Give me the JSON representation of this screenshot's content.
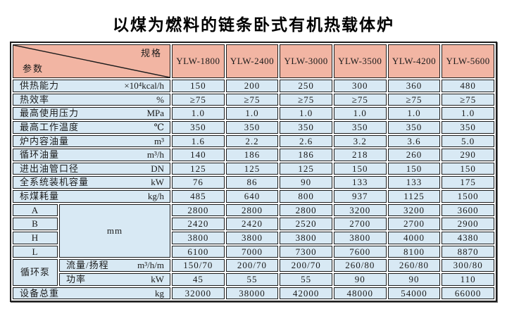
{
  "title": "以煤为燃料的链条卧式有机热载体炉",
  "colors": {
    "header_bg": "#f2b5a3",
    "row_bg": "#d8e9f4",
    "border": "#1c1c1c",
    "page_bg": "#ffffff",
    "text": "#1a1a1a"
  },
  "table": {
    "corner": {
      "spec_label": "规格",
      "param_label": "参数"
    },
    "models": [
      "YLW-1800",
      "YLW-2400",
      "YLW-3000",
      "YLW-3500",
      "YLW-4200",
      "YLW-5600"
    ],
    "rows": [
      {
        "label": "供热能力",
        "unit": "×10⁴kcal/h",
        "colspan": 2,
        "values": [
          "150",
          "200",
          "250",
          "300",
          "360",
          "480"
        ]
      },
      {
        "label": "热效率",
        "unit": "%",
        "colspan": 2,
        "values": [
          "≥75",
          "≥75",
          "≥75",
          "≥75",
          "≥75",
          "≥75"
        ]
      },
      {
        "label": "最高使用压力",
        "unit": "MPa",
        "colspan": 2,
        "values": [
          "1.0",
          "1.0",
          "1.0",
          "1.0",
          "1.0",
          "1.0"
        ]
      },
      {
        "label": "最高工作温度",
        "unit": "℃",
        "colspan": 2,
        "values": [
          "350",
          "350",
          "350",
          "350",
          "350",
          "350"
        ]
      },
      {
        "label": "炉内容油量",
        "unit": "m³",
        "colspan": 2,
        "values": [
          "1.6",
          "2.2",
          "2.6",
          "3.2",
          "3.6",
          "5.0"
        ]
      },
      {
        "label": "循环油量",
        "unit": "m³/h",
        "colspan": 2,
        "values": [
          "140",
          "186",
          "186",
          "218",
          "260",
          "290"
        ]
      },
      {
        "label": "进出油管口径",
        "unit": "DN",
        "colspan": 2,
        "values": [
          "125",
          "125",
          "125",
          "150",
          "150",
          "150"
        ]
      },
      {
        "label": "全系统装机容量",
        "unit": "kW",
        "colspan": 2,
        "values": [
          "76",
          "86",
          "90",
          "133",
          "133",
          "175"
        ]
      },
      {
        "label": "标煤耗量",
        "unit": "kg/h",
        "colspan": 2,
        "values": [
          "485",
          "640",
          "800",
          "937",
          "1125",
          "1500"
        ]
      },
      {
        "letter": "A",
        "merged_unit": "mm",
        "merged_span": 4,
        "values": [
          "2800",
          "2800",
          "2800",
          "3200",
          "3200",
          "3600"
        ]
      },
      {
        "letter": "B",
        "values": [
          "2420",
          "2420",
          "2520",
          "2700",
          "2700",
          "2900"
        ]
      },
      {
        "letter": "H",
        "values": [
          "3800",
          "3800",
          "3800",
          "3800",
          "4000",
          "4380"
        ]
      },
      {
        "letter": "L",
        "values": [
          "6100",
          "7000",
          "7300",
          "7600",
          "8100",
          "8870"
        ]
      },
      {
        "group": "循环泵",
        "group_span": 2,
        "label": "流量/扬程",
        "unit": "m³/h/m",
        "values": [
          "150/70",
          "200/70",
          "200/70",
          "260/80",
          "260/80",
          "300/80"
        ]
      },
      {
        "label": "功率",
        "unit": "kW",
        "values": [
          "45",
          "55",
          "55",
          "90",
          "90",
          "110"
        ]
      },
      {
        "label": "设备总重",
        "unit": "kg",
        "colspan": 2,
        "values": [
          "32000",
          "38000",
          "42000",
          "48000",
          "54000",
          "66000"
        ]
      }
    ]
  }
}
